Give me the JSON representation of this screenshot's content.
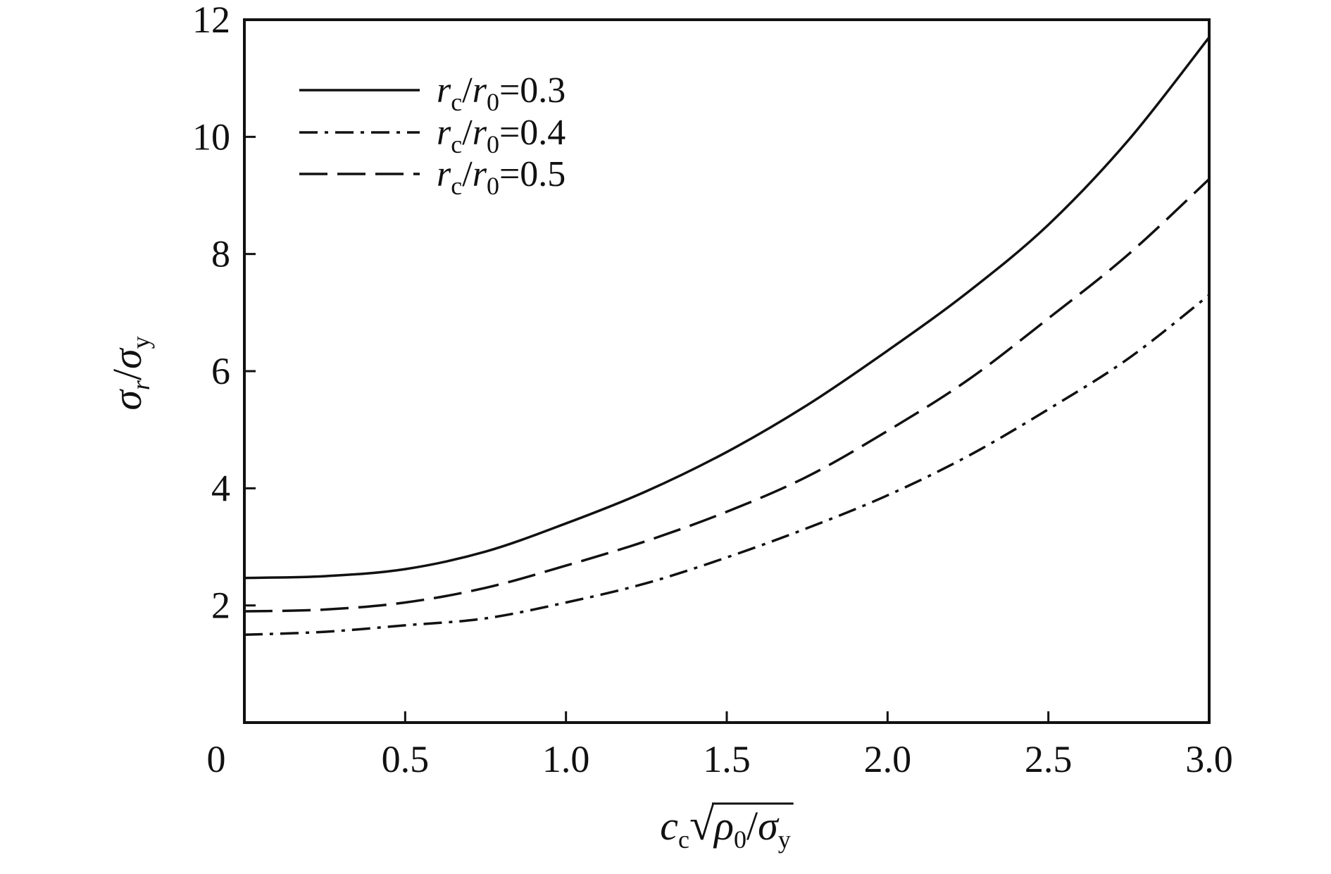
{
  "chart_data": {
    "type": "line",
    "xlim": [
      0,
      3.0
    ],
    "ylim": [
      0,
      12
    ],
    "x_ticks": [
      0,
      0.5,
      1.0,
      1.5,
      2.0,
      2.5,
      3.0
    ],
    "x_tick_labels": [
      "0",
      "0.5",
      "1.0",
      "1.5",
      "2.0",
      "2.5",
      "3.0"
    ],
    "y_ticks": [
      2,
      4,
      6,
      8,
      10,
      12
    ],
    "y_tick_labels": [
      "2",
      "4",
      "6",
      "8",
      "10",
      "12"
    ],
    "xlabel": {
      "base": "c",
      "sub": "c",
      "root": "√",
      "num": "ρ",
      "num_sub": "0",
      "slash": "/",
      "den": "σ",
      "den_sub": "y"
    },
    "ylabel": {
      "num": "σ",
      "num_sub": "r",
      "slash": "/",
      "den": "σ",
      "den_sub": "y"
    },
    "grid": false,
    "legend_position": "top-left",
    "x": [
      0,
      0.25,
      0.5,
      0.75,
      1.0,
      1.25,
      1.5,
      1.75,
      2.0,
      2.25,
      2.5,
      2.75,
      3.0
    ],
    "series": [
      {
        "name": "rc/r0=0.3",
        "label": {
          "v1": "r",
          "s1": "c",
          "slash": "/",
          "v2": "r",
          "s2": "0",
          "eq": "=0.3"
        },
        "style": "solid",
        "values": [
          2.47,
          2.5,
          2.62,
          2.92,
          3.4,
          3.95,
          4.62,
          5.42,
          6.35,
          7.35,
          8.5,
          9.95,
          11.7
        ]
      },
      {
        "name": "rc/r0=0.4",
        "label": {
          "v1": "r",
          "s1": "c",
          "slash": "/",
          "v2": "r",
          "s2": "0",
          "eq": "=0.4"
        },
        "style": "dash-dot",
        "values": [
          1.5,
          1.55,
          1.66,
          1.78,
          2.05,
          2.38,
          2.82,
          3.32,
          3.88,
          4.55,
          5.35,
          6.22,
          7.3
        ]
      },
      {
        "name": "rc/r0=0.5",
        "label": {
          "v1": "r",
          "s1": "c",
          "slash": "/",
          "v2": "r",
          "s2": "0",
          "eq": "=0.5"
        },
        "style": "dash",
        "values": [
          1.9,
          1.93,
          2.05,
          2.3,
          2.68,
          3.1,
          3.6,
          4.2,
          4.98,
          5.85,
          6.9,
          8.0,
          9.28
        ]
      }
    ]
  },
  "colors": {
    "line": "#111111",
    "axis": "#111111",
    "background": "#ffffff"
  }
}
